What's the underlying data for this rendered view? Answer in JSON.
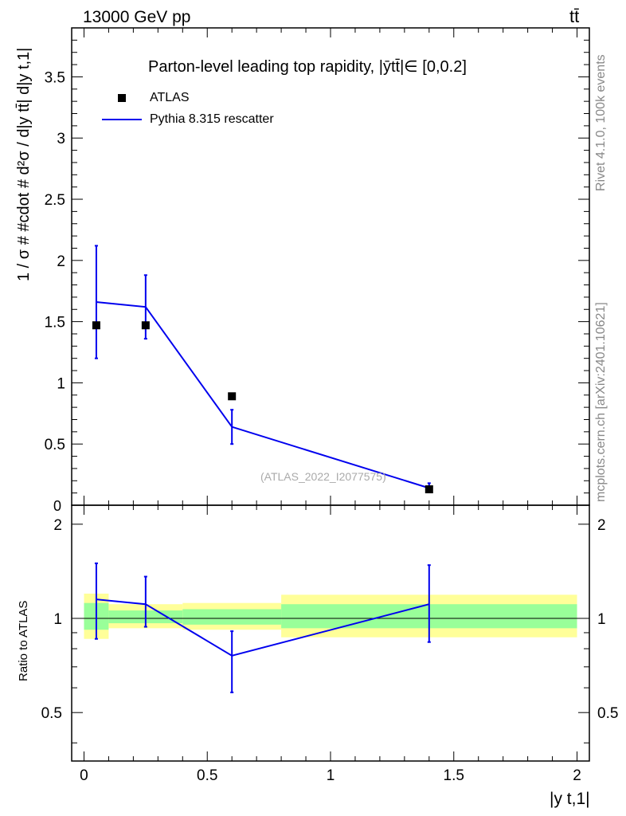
{
  "header": {
    "energy_label": "13000 GeV pp",
    "process_label": "tt̄"
  },
  "side_labels": {
    "rivet": "Rivet 4.1.0,  100k events",
    "source": "mcplots.cern.ch [arXiv:2401.10621]"
  },
  "chart_data": [
    {
      "type": "scatter",
      "panel": "main",
      "title": "Parton-level leading top rapidity, |ȳtt̄|∈ [0,0.2]",
      "ylabel": "1 / σ # #cdot # d²σ / d|y tt̄| d|y t,1|",
      "xlabel": "",
      "xlim": [
        -0.05,
        2.05
      ],
      "ylim": [
        0,
        3.9
      ],
      "yticks": [
        0.5,
        1,
        1.5,
        2,
        2.5,
        3,
        3.5
      ],
      "ytick_labels": [
        "0.5",
        "1",
        "1.5",
        "2",
        "2.5",
        "3",
        "3.5"
      ],
      "y_zero_label": "0",
      "watermark": "(ATLAS_2022_I2077575)",
      "legend": {
        "position": "top-left",
        "entries": [
          "ATLAS",
          "Pythia 8.315 rescatter"
        ]
      },
      "series": [
        {
          "name": "ATLAS",
          "style": "marker",
          "color": "#000000",
          "x": [
            0.05,
            0.25,
            0.6,
            1.4
          ],
          "y": [
            1.47,
            1.47,
            0.89,
            0.13
          ]
        },
        {
          "name": "Pythia 8.315 rescatter",
          "style": "line",
          "color": "#0000ee",
          "x": [
            0.05,
            0.25,
            0.6,
            1.4
          ],
          "y": [
            1.66,
            1.62,
            0.64,
            0.14
          ],
          "err_low": [
            1.2,
            1.36,
            0.5,
            0.11
          ],
          "err_high": [
            2.12,
            1.88,
            0.78,
            0.18
          ]
        }
      ]
    },
    {
      "type": "line",
      "panel": "ratio",
      "ylabel": "Ratio to ATLAS",
      "xlabel": "|y t,1|",
      "xlim": [
        -0.05,
        2.05
      ],
      "ylim": [
        0.35,
        2.3
      ],
      "yticks": [
        0.5,
        1,
        2
      ],
      "ytick_labels": [
        "0.5",
        "1",
        "2"
      ],
      "xticks": [
        0,
        0.5,
        1,
        1.5,
        2
      ],
      "xtick_labels": [
        "0",
        "0.5",
        "1",
        "1.5",
        "2"
      ],
      "reference_line": 1,
      "bands": {
        "bins": [
          [
            0,
            0.1
          ],
          [
            0.1,
            0.4
          ],
          [
            0.4,
            0.8
          ],
          [
            0.8,
            2.0
          ]
        ],
        "yellow": [
          [
            0.86,
            1.2
          ],
          [
            0.93,
            1.11
          ],
          [
            0.92,
            1.12
          ],
          [
            0.87,
            1.19
          ]
        ],
        "green": [
          [
            0.92,
            1.12
          ],
          [
            0.965,
            1.06
          ],
          [
            0.955,
            1.07
          ],
          [
            0.93,
            1.11
          ]
        ]
      },
      "series": [
        {
          "name": "Pythia 8.315 rescatter",
          "color": "#0000ee",
          "x": [
            0.05,
            0.25,
            0.6,
            1.4
          ],
          "y": [
            1.15,
            1.11,
            0.76,
            1.11
          ],
          "err_low": [
            0.86,
            0.94,
            0.58,
            0.84
          ],
          "err_high": [
            1.5,
            1.36,
            0.91,
            1.48
          ]
        }
      ]
    }
  ]
}
